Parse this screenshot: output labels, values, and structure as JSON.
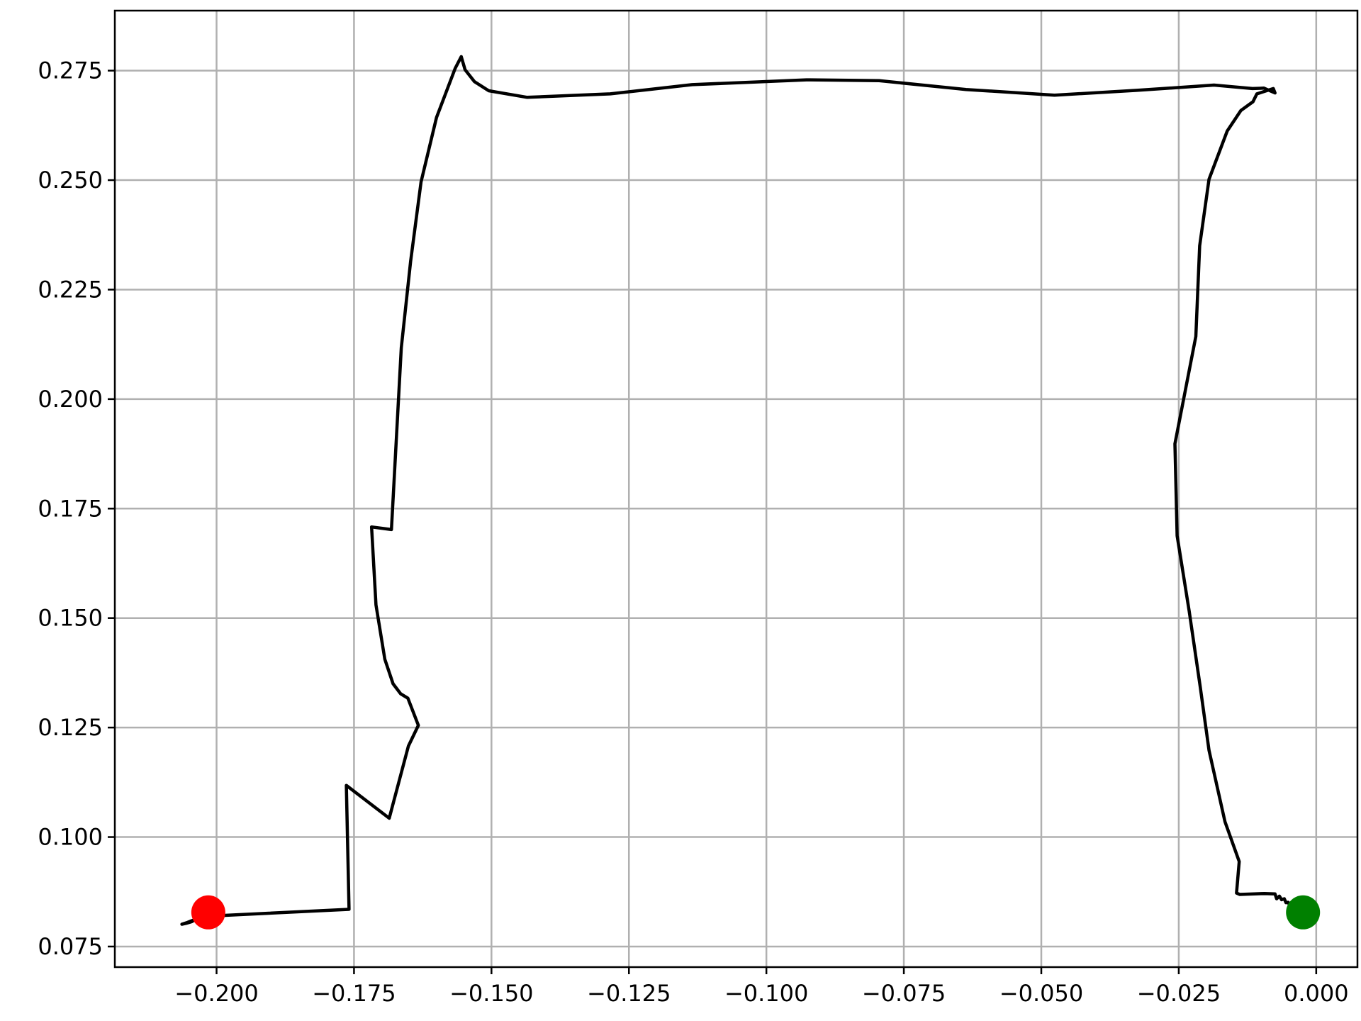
{
  "chart_data": {
    "type": "line",
    "title": "",
    "xlabel": "",
    "ylabel": "",
    "xlim": [
      -0.2185,
      0.0075
    ],
    "ylim": [
      0.0703,
      0.2887
    ],
    "grid": true,
    "x_ticks": [
      -0.2,
      -0.175,
      -0.15,
      -0.125,
      -0.1,
      -0.075,
      -0.05,
      -0.025,
      0.0
    ],
    "x_tick_labels": [
      "−0.200",
      "−0.175",
      "−0.150",
      "−0.125",
      "−0.100",
      "−0.075",
      "−0.050",
      "−0.025",
      "0.000"
    ],
    "y_ticks": [
      0.075,
      0.1,
      0.125,
      0.15,
      0.175,
      0.2,
      0.225,
      0.25,
      0.275
    ],
    "y_tick_labels": [
      "0.075",
      "0.100",
      "0.125",
      "0.150",
      "0.175",
      "0.200",
      "0.225",
      "0.250",
      "0.275"
    ],
    "series": [
      {
        "color": "#000000",
        "x": [
          -0.0024,
          -0.0037,
          -0.0042,
          -0.0048,
          -0.0051,
          -0.0055,
          -0.0058,
          -0.0063,
          -0.0067,
          -0.0072,
          -0.0075,
          -0.0094,
          -0.0139,
          -0.0145,
          -0.014,
          -0.0166,
          -0.0195,
          -0.0211,
          -0.0231,
          -0.0253,
          -0.0257,
          -0.0219,
          -0.0212,
          -0.0195,
          -0.0162,
          -0.0137,
          -0.0115,
          -0.0108,
          -0.0078,
          -0.0075,
          -0.0095,
          -0.0116,
          -0.0186,
          -0.0326,
          -0.0476,
          -0.0637,
          -0.0795,
          -0.0927,
          -0.1135,
          -0.1284,
          -0.1435,
          -0.1505,
          -0.1531,
          -0.1548,
          -0.1555,
          -0.1566,
          -0.16,
          -0.1628,
          -0.1647,
          -0.1664,
          -0.1682,
          -0.1718,
          -0.171,
          -0.1694,
          -0.1679,
          -0.1665,
          -0.1652,
          -0.1633,
          -0.1651,
          -0.1686,
          -0.1764,
          -0.1759,
          -0.1988,
          -0.2008,
          -0.2015,
          -0.2025,
          -0.2035,
          -0.2045,
          -0.2053,
          -0.2063,
          -0.2055,
          -0.2045,
          -0.2033,
          -0.2018
        ],
        "y": [
          0.0829,
          0.0837,
          0.0845,
          0.0843,
          0.0851,
          0.085,
          0.0859,
          0.0857,
          0.0865,
          0.0859,
          0.087,
          0.0871,
          0.0869,
          0.0872,
          0.0944,
          0.1035,
          0.1198,
          0.1343,
          0.1516,
          0.1688,
          0.1898,
          0.2143,
          0.235,
          0.2502,
          0.2612,
          0.2659,
          0.2679,
          0.2697,
          0.2709,
          0.2699,
          0.271,
          0.2709,
          0.2717,
          0.2705,
          0.2694,
          0.2707,
          0.2727,
          0.2729,
          0.2718,
          0.2697,
          0.2689,
          0.2704,
          0.2725,
          0.2752,
          0.2782,
          0.2755,
          0.2643,
          0.2496,
          0.2315,
          0.2117,
          0.1702,
          0.1708,
          0.153,
          0.1406,
          0.135,
          0.1327,
          0.1317,
          0.1255,
          0.1208,
          0.1043,
          0.1118,
          0.0835,
          0.0821,
          0.0824,
          0.0817,
          0.0817,
          0.0813,
          0.0809,
          0.0805,
          0.0801,
          0.0803,
          0.0807,
          0.0816,
          0.0822
        ]
      }
    ],
    "markers": [
      {
        "color": "#ff0000",
        "x": -0.2015,
        "y": 0.0828
      },
      {
        "color": "#008000",
        "x": -0.0024,
        "y": 0.0828
      }
    ]
  }
}
